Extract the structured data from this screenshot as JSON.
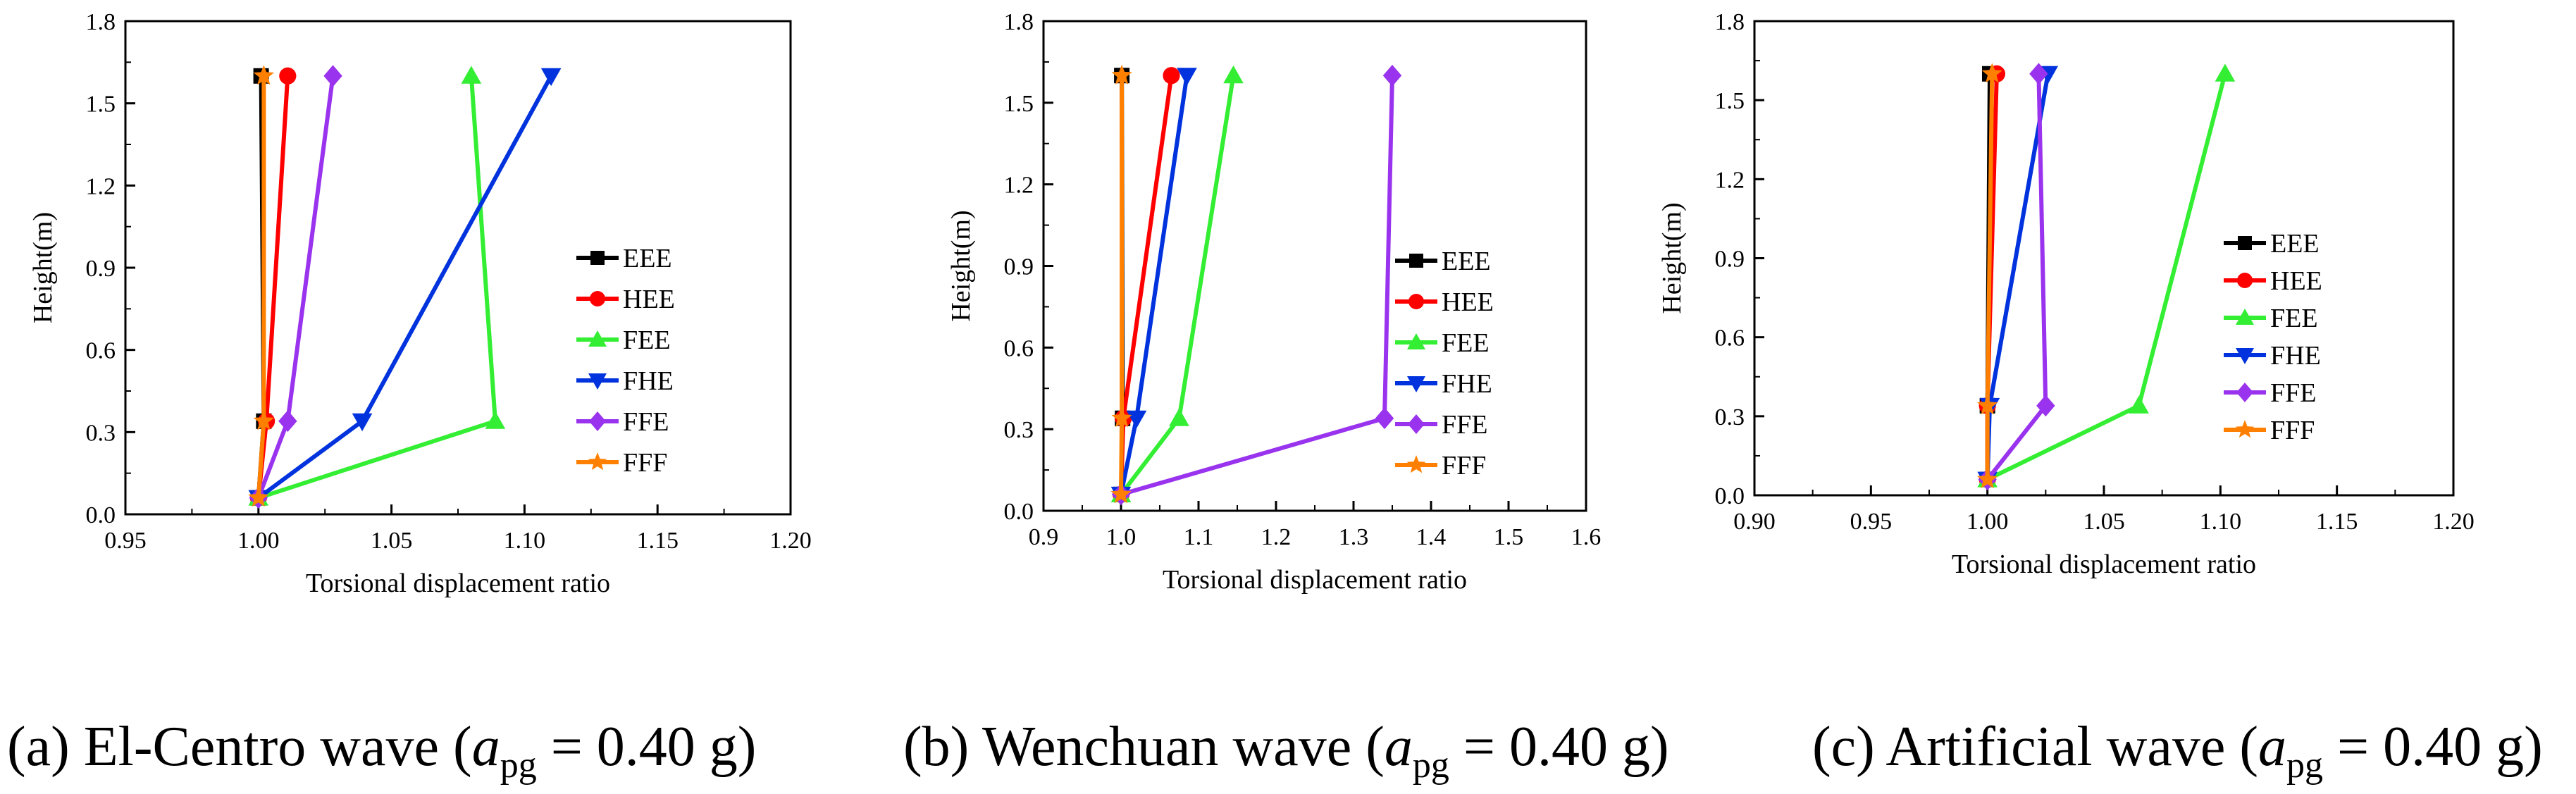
{
  "colors": {
    "EEE": "#000000",
    "HEE": "#ff0000",
    "FEE": "#33ee33",
    "FHE": "#0033dd",
    "FFE": "#9933ee",
    "FFF": "#ff8000"
  },
  "chart_data": [
    {
      "type": "line",
      "title": "El-Centro wave",
      "xlabel": "Torsional displacement ratio",
      "ylabel": "Height(m)",
      "xlim": [
        0.95,
        1.2
      ],
      "ylim": [
        0.0,
        1.8
      ],
      "xticks": [
        "0.95",
        "1.00",
        "1.05",
        "1.10",
        "1.15",
        "1.20"
      ],
      "yticks": [
        "0.0",
        "0.3",
        "0.6",
        "0.9",
        "1.2",
        "1.5",
        "1.8"
      ],
      "y": [
        0.06,
        0.34,
        1.6
      ],
      "legend_position": "center-right",
      "series": [
        {
          "name": "EEE",
          "marker": "square",
          "values": [
            1.0,
            1.002,
            1.001
          ]
        },
        {
          "name": "HEE",
          "marker": "circle",
          "values": [
            1.0,
            1.003,
            1.011
          ]
        },
        {
          "name": "FEE",
          "marker": "triangle-up",
          "values": [
            1.0,
            1.089,
            1.08
          ]
        },
        {
          "name": "FHE",
          "marker": "triangle-down",
          "values": [
            1.0,
            1.039,
            1.11
          ]
        },
        {
          "name": "FFE",
          "marker": "diamond",
          "values": [
            1.0,
            1.011,
            1.028
          ]
        },
        {
          "name": "FFF",
          "marker": "star",
          "values": [
            1.0,
            1.002,
            1.002
          ]
        }
      ],
      "caption": {
        "prefix": "(a) El-Centro wave (",
        "var": "a",
        "sub": "pg",
        "suffix": " = 0.40 g)"
      }
    },
    {
      "type": "line",
      "title": "Wenchuan wave",
      "xlabel": "Torsional displacement ratio",
      "ylabel": "Height(m)",
      "xlim": [
        0.9,
        1.6
      ],
      "ylim": [
        0.0,
        1.8
      ],
      "xticks": [
        "0.9",
        "1.0",
        "1.1",
        "1.2",
        "1.3",
        "1.4",
        "1.5",
        "1.6"
      ],
      "yticks": [
        "0.0",
        "0.3",
        "0.6",
        "0.9",
        "1.2",
        "1.5",
        "1.8"
      ],
      "y": [
        0.06,
        0.34,
        1.6
      ],
      "legend_position": "center-right",
      "series": [
        {
          "name": "EEE",
          "marker": "square",
          "values": [
            1.0,
            1.002,
            1.001
          ]
        },
        {
          "name": "HEE",
          "marker": "circle",
          "values": [
            1.0,
            1.003,
            1.065
          ]
        },
        {
          "name": "FEE",
          "marker": "triangle-up",
          "values": [
            1.0,
            1.075,
            1.145
          ]
        },
        {
          "name": "FHE",
          "marker": "triangle-down",
          "values": [
            1.0,
            1.02,
            1.085
          ]
        },
        {
          "name": "FFE",
          "marker": "diamond",
          "values": [
            1.0,
            1.34,
            1.35
          ]
        },
        {
          "name": "FFF",
          "marker": "star",
          "values": [
            1.0,
            1.001,
            1.001
          ]
        }
      ],
      "caption": {
        "prefix": "(b) Wenchuan wave (",
        "var": "a",
        "sub": "pg",
        "suffix": " = 0.40 g)"
      }
    },
    {
      "type": "line",
      "title": "Artificial wave",
      "xlabel": "Torsional displacement ratio",
      "ylabel": "Height(m)",
      "xlim": [
        0.9,
        1.2
      ],
      "ylim": [
        0.0,
        1.8
      ],
      "xticks": [
        "0.90",
        "0.95",
        "1.00",
        "1.05",
        "1.10",
        "1.15",
        "1.20"
      ],
      "yticks": [
        "0.0",
        "0.3",
        "0.6",
        "0.9",
        "1.2",
        "1.5",
        "1.8"
      ],
      "y": [
        0.06,
        0.34,
        1.6
      ],
      "legend_position": "center-left",
      "series": [
        {
          "name": "EEE",
          "marker": "square",
          "values": [
            1.0,
            1.0,
            1.001
          ]
        },
        {
          "name": "HEE",
          "marker": "circle",
          "values": [
            1.0,
            1.0,
            1.004
          ]
        },
        {
          "name": "FEE",
          "marker": "triangle-up",
          "values": [
            1.0,
            1.065,
            1.102
          ]
        },
        {
          "name": "FHE",
          "marker": "triangle-down",
          "values": [
            1.0,
            1.001,
            1.026
          ]
        },
        {
          "name": "FFE",
          "marker": "diamond",
          "values": [
            1.0,
            1.025,
            1.022
          ]
        },
        {
          "name": "FFF",
          "marker": "star",
          "values": [
            1.0,
            1.0,
            1.002
          ]
        }
      ],
      "caption": {
        "prefix": "(c) Artificial wave (",
        "var": "a",
        "sub": "pg",
        "suffix": " = 0.40 g)"
      }
    }
  ]
}
